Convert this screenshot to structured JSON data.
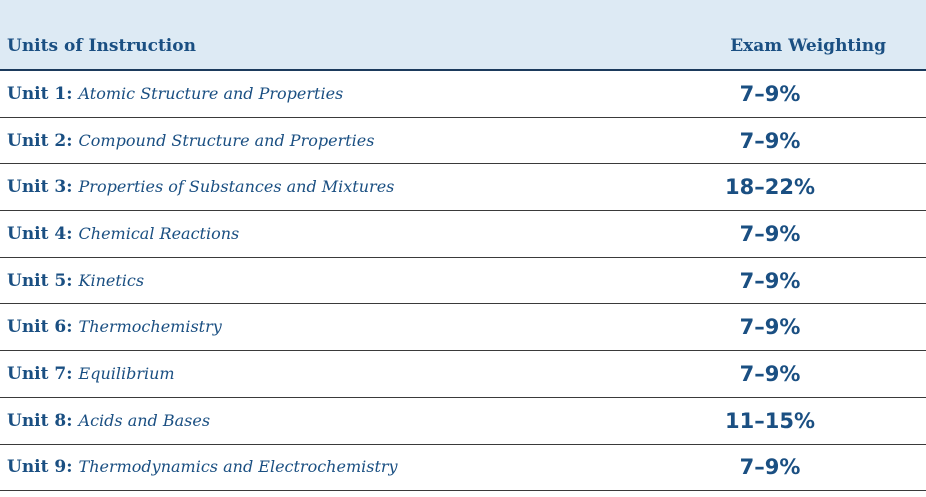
{
  "table": {
    "header": {
      "units_label": "Units of Instruction",
      "weighting_label": "Exam Weighting"
    },
    "rows": [
      {
        "unit": "Unit 1:",
        "title": "Atomic Structure and Properties",
        "weighting": "7–9%"
      },
      {
        "unit": "Unit 2:",
        "title": "Compound Structure and Properties",
        "weighting": "7–9%"
      },
      {
        "unit": "Unit 3:",
        "title": "Properties of Substances and Mixtures",
        "weighting": "18–22%"
      },
      {
        "unit": "Unit 4:",
        "title": "Chemical Reactions",
        "weighting": "7–9%"
      },
      {
        "unit": "Unit 5:",
        "title": "Kinetics",
        "weighting": "7–9%"
      },
      {
        "unit": "Unit 6:",
        "title": "Thermochemistry",
        "weighting": "7–9%"
      },
      {
        "unit": "Unit 7:",
        "title": "Equilibrium",
        "weighting": "7–9%"
      },
      {
        "unit": "Unit 8:",
        "title": "Acids and Bases",
        "weighting": "11–15%"
      },
      {
        "unit": "Unit 9:",
        "title": "Thermodynamics and Electrochemistry",
        "weighting": "7–9%"
      }
    ]
  },
  "colors": {
    "accent": "#1a4f82",
    "header_bg": "#ddeaf4"
  }
}
